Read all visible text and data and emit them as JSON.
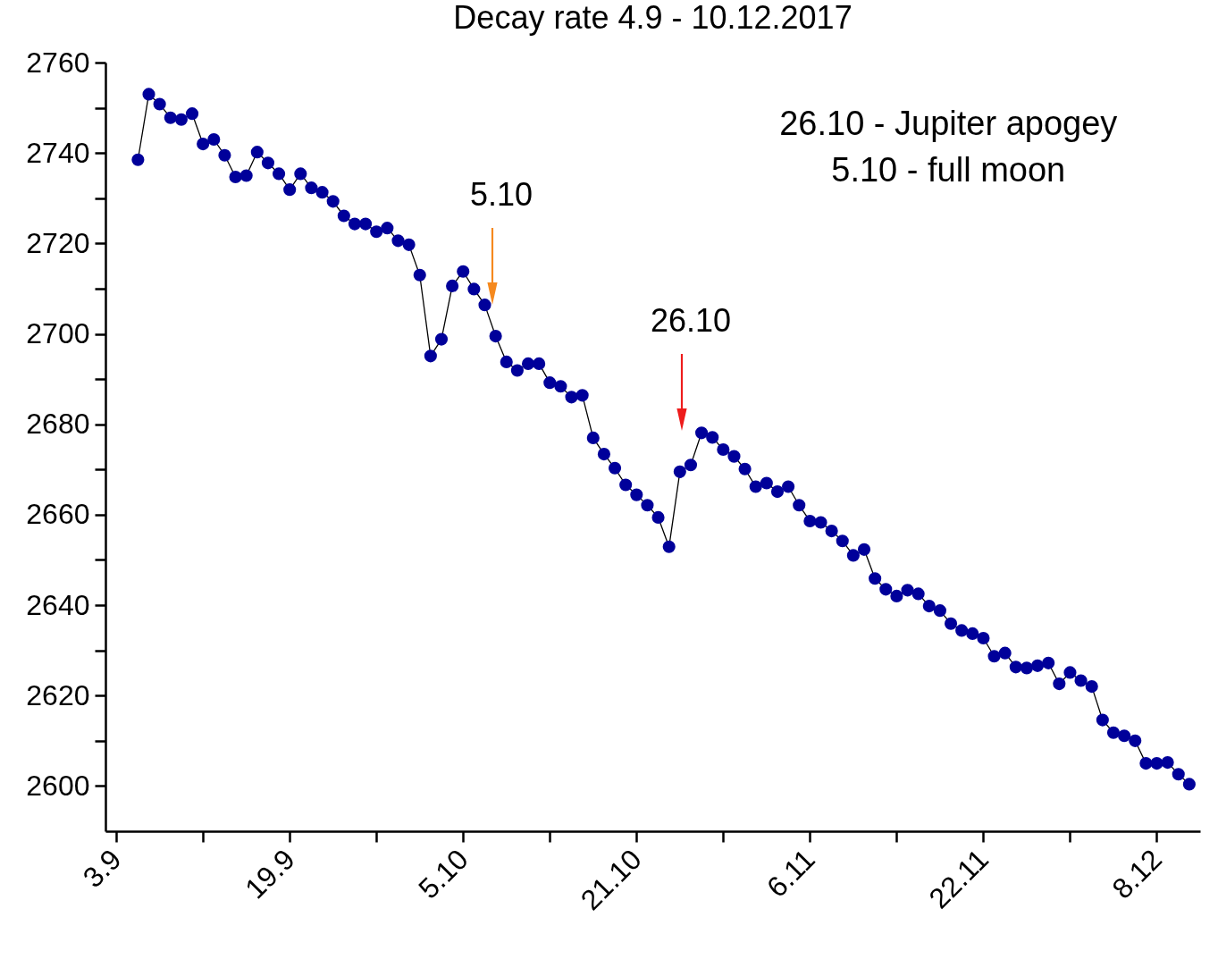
{
  "chart_data": {
    "type": "line",
    "title": "Decay rate 4.9 - 10.12.2017",
    "marker": "circle",
    "line_style": "solid",
    "color": "#00009a",
    "x": [
      "--09-05",
      "--09-06",
      "--09-07",
      "--09-08",
      "--09-09",
      "--09-10",
      "--09-11",
      "--09-12",
      "--09-13",
      "--09-14",
      "--09-15",
      "--09-16",
      "--09-17",
      "--09-18",
      "--09-19",
      "--09-20",
      "--09-21",
      "--09-22",
      "--09-23",
      "--09-24",
      "--09-25",
      "--09-26",
      "--09-27",
      "--09-28",
      "--09-29",
      "--09-30",
      "--10-01",
      "--10-02",
      "--10-03",
      "--10-04",
      "--10-05",
      "--10-06",
      "--10-07",
      "--10-08",
      "--10-09",
      "--10-10",
      "--10-11",
      "--10-12",
      "--10-13",
      "--10-14",
      "--10-15",
      "--10-16",
      "--10-17",
      "--10-18",
      "--10-19",
      "--10-20",
      "--10-21",
      "--10-22",
      "--10-23",
      "--10-24",
      "--10-25",
      "--10-26",
      "--10-27",
      "--10-28",
      "--10-29",
      "--10-30",
      "--10-31",
      "--11-01",
      "--11-02",
      "--11-03",
      "--11-04",
      "--11-05",
      "--11-06",
      "--11-07",
      "--11-08",
      "--11-09",
      "--11-10",
      "--11-11",
      "--11-12",
      "--11-13",
      "--11-14",
      "--11-15",
      "--11-16",
      "--11-17",
      "--11-18",
      "--11-19",
      "--11-20",
      "--11-21",
      "--11-22",
      "--11-23",
      "--11-24",
      "--11-25",
      "--11-26",
      "--11-27",
      "--11-28",
      "--11-29",
      "--11-30",
      "--12-01",
      "--12-02",
      "--12-03",
      "--12-04",
      "--12-05",
      "--12-06",
      "--12-07",
      "--12-08",
      "--12-09",
      "--12-10",
      "--12-11"
    ],
    "values": [
      2738.5,
      2753,
      2750.8,
      2747.8,
      2747.4,
      2748.7,
      2742,
      2743,
      2739.5,
      2734.7,
      2735,
      2740.2,
      2737.8,
      2735.4,
      2731.9,
      2735.4,
      2732.3,
      2731.3,
      2729.3,
      2726.1,
      2724.3,
      2724.3,
      2722.6,
      2723.4,
      2720.6,
      2719.7,
      2713,
      2695.1,
      2698.8,
      2710.6,
      2713.8,
      2709.9,
      2706.4,
      2699.5,
      2693.8,
      2691.9,
      2693.4,
      2693.4,
      2689.2,
      2688.4,
      2686,
      2686.4,
      2677,
      2673.4,
      2670.3,
      2666.6,
      2664.4,
      2662.1,
      2659.4,
      2652.9,
      2669.5,
      2671,
      2678.1,
      2677.1,
      2674.4,
      2672.9,
      2670.1,
      2666.2,
      2667,
      2665.1,
      2666.2,
      2662.1,
      2658.6,
      2658.3,
      2656.4,
      2654.2,
      2651,
      2652.3,
      2645.9,
      2643.5,
      2642,
      2643.3,
      2642.5,
      2639.8,
      2638.8,
      2635.9,
      2634.4,
      2633.7,
      2632.7,
      2628.7,
      2629.4,
      2626.3,
      2626.1,
      2626.6,
      2627.2,
      2622.6,
      2625.1,
      2623.3,
      2622,
      2614.6,
      2611.8,
      2611.1,
      2610,
      2605,
      2605,
      2605.2,
      2602.6,
      2600.4
    ],
    "xlim": [
      "--09-02",
      "--12-12"
    ],
    "xticks": [
      {
        "value": "--09-03",
        "label": "3.9"
      },
      {
        "value": "--09-11",
        "label": null
      },
      {
        "value": "--09-19",
        "label": "19.9"
      },
      {
        "value": "--09-27",
        "label": null
      },
      {
        "value": "--10-05",
        "label": "5.10"
      },
      {
        "value": "--10-13",
        "label": null
      },
      {
        "value": "--10-21",
        "label": "21.10"
      },
      {
        "value": "--10-29",
        "label": null
      },
      {
        "value": "--11-06",
        "label": "6.11"
      },
      {
        "value": "--11-14",
        "label": null
      },
      {
        "value": "--11-22",
        "label": "22.11"
      },
      {
        "value": "--11-30",
        "label": null
      },
      {
        "value": "--12-08",
        "label": "8.12"
      }
    ],
    "ylim": [
      2590,
      2760
    ],
    "yticks": [
      2600,
      {
        "value": 2610,
        "label": null
      },
      2620,
      {
        "value": 2630,
        "label": null
      },
      2640,
      {
        "value": 2650,
        "label": null
      },
      2660,
      {
        "value": 2670,
        "label": null
      },
      2680,
      {
        "value": 2690,
        "label": null
      },
      2700,
      {
        "value": 2710,
        "label": null
      },
      2720,
      {
        "value": 2730,
        "label": null
      },
      2740,
      {
        "value": 2750,
        "label": null
      },
      2760
    ],
    "annotations": [
      "26.10 - Jupiter apogey",
      "5.10 - full moon",
      "5.10",
      "26.10"
    ]
  }
}
